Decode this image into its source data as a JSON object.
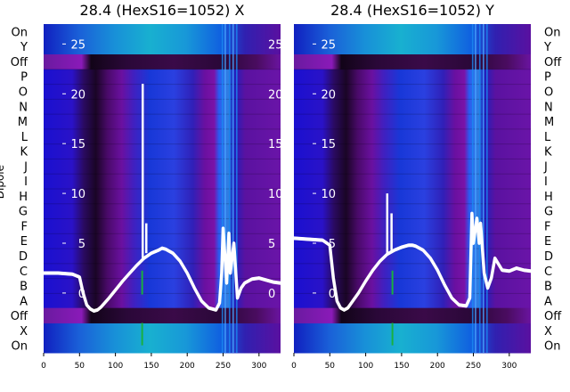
{
  "chart_data": [
    {
      "type": "heatmap",
      "title": "28.4 (HexS16=1052) X",
      "ylabel": "Dipole",
      "categories": [
        "On",
        "X",
        "Off",
        "A",
        "B",
        "C",
        "D",
        "E",
        "F",
        "G",
        "H",
        "I",
        "J",
        "K",
        "L",
        "M",
        "N",
        "O",
        "P",
        "Off",
        "Y",
        "On"
      ],
      "x_ticks": [
        0,
        50,
        100,
        150,
        200,
        250,
        300
      ],
      "xlim": [
        0,
        330
      ],
      "overlay": {
        "type": "line",
        "color": "#ffffff",
        "y_ticks": [
          0,
          5,
          10,
          15,
          20,
          25
        ],
        "ylim": [
          -6,
          27
        ],
        "x": [
          0,
          20,
          40,
          50,
          55,
          60,
          65,
          70,
          75,
          80,
          90,
          100,
          110,
          120,
          130,
          140,
          150,
          160,
          165,
          170,
          180,
          190,
          200,
          210,
          220,
          230,
          240,
          245,
          248,
          250,
          255,
          258,
          260,
          265,
          270,
          275,
          280,
          290,
          300,
          310,
          320,
          330
        ],
        "y": [
          2,
          2,
          1.9,
          1.6,
          0,
          -1.2,
          -1.6,
          -1.8,
          -1.7,
          -1.4,
          -0.6,
          0.3,
          1.2,
          2,
          2.8,
          3.5,
          4,
          4.3,
          4.5,
          4.4,
          4,
          3.2,
          2,
          0.5,
          -0.8,
          -1.5,
          -1.7,
          -1,
          2,
          6.5,
          1,
          6,
          2,
          5,
          -0.5,
          0.5,
          1,
          1.4,
          1.5,
          1.3,
          1.1,
          1
        ]
      },
      "spikes": [
        {
          "x": 138,
          "y": 21
        },
        {
          "x": 143,
          "y": 7
        }
      ]
    },
    {
      "type": "heatmap",
      "title": "28.4 (HexS16=1052) Y",
      "ylabel": "",
      "categories": [
        "On",
        "X",
        "Off",
        "A",
        "B",
        "C",
        "D",
        "E",
        "F",
        "G",
        "H",
        "I",
        "J",
        "K",
        "L",
        "M",
        "N",
        "O",
        "P",
        "Off",
        "Y",
        "On"
      ],
      "x_ticks": [
        0,
        50,
        100,
        150,
        200,
        250,
        300
      ],
      "xlim": [
        0,
        330
      ],
      "overlay": {
        "type": "line",
        "color": "#ffffff",
        "y_ticks": [
          0,
          5,
          10,
          15,
          20,
          25
        ],
        "ylim": [
          -6,
          27
        ],
        "x": [
          0,
          20,
          40,
          50,
          55,
          60,
          65,
          70,
          75,
          80,
          90,
          100,
          110,
          120,
          130,
          140,
          150,
          160,
          165,
          170,
          180,
          190,
          200,
          210,
          220,
          230,
          240,
          245,
          248,
          250,
          255,
          258,
          260,
          265,
          270,
          275,
          280,
          290,
          300,
          310,
          320,
          330
        ],
        "y": [
          5.5,
          5.4,
          5.3,
          4.8,
          1.5,
          -0.8,
          -1.5,
          -1.7,
          -1.5,
          -1,
          0,
          1.2,
          2.3,
          3.2,
          3.9,
          4.3,
          4.6,
          4.8,
          4.8,
          4.7,
          4.3,
          3.5,
          2.3,
          0.8,
          -0.5,
          -1.2,
          -1.3,
          -0.5,
          8,
          5,
          7.5,
          5,
          7,
          2,
          0.5,
          1.5,
          3.5,
          2.3,
          2.2,
          2.5,
          2.3,
          2.2
        ]
      },
      "spikes": [
        {
          "x": 130,
          "y": 10
        },
        {
          "x": 136,
          "y": 8
        }
      ]
    }
  ]
}
